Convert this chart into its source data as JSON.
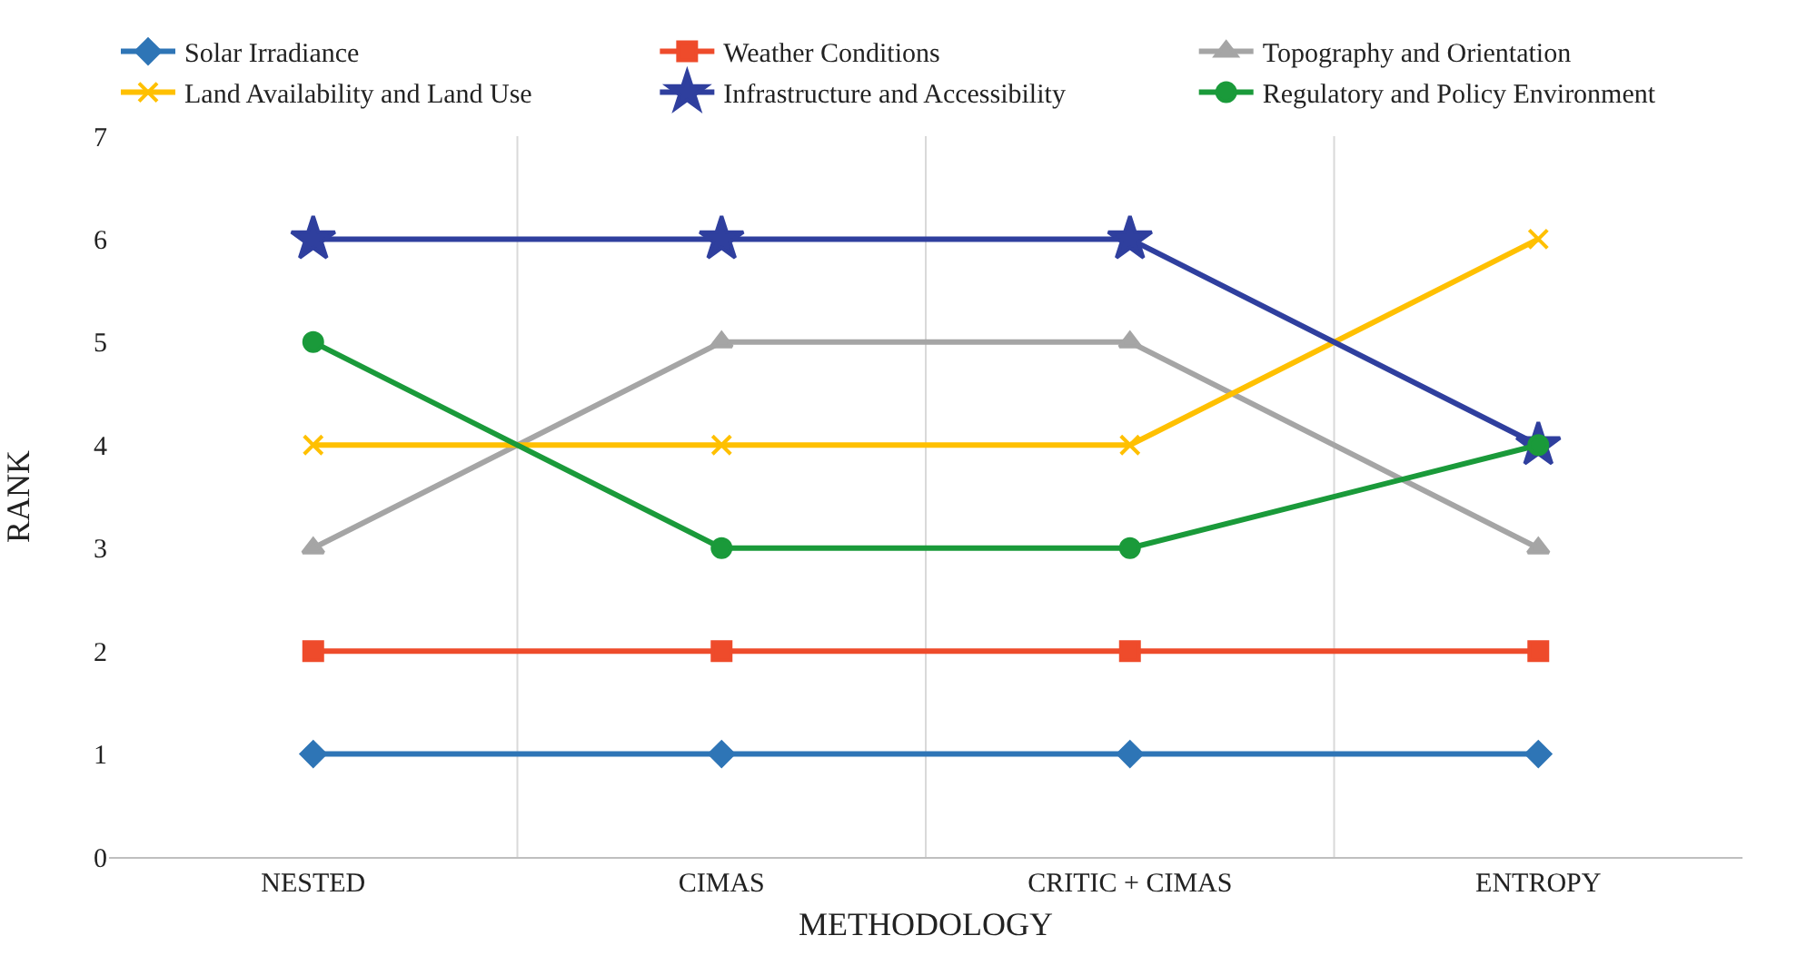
{
  "chart_data": {
    "type": "line",
    "xlabel": "METHODOLOGY",
    "ylabel": "RANK",
    "categories": [
      "NESTED",
      "CIMAS",
      "CRITIC + CIMAS",
      "ENTROPY"
    ],
    "series": [
      {
        "name": "Solar Irradiance",
        "color": "#2e75b6",
        "marker": "diamond",
        "values": [
          1,
          1,
          1,
          1
        ]
      },
      {
        "name": "Weather Conditions",
        "color": "#ee4b2b",
        "marker": "square",
        "values": [
          2,
          2,
          2,
          2
        ]
      },
      {
        "name": "Topography and Orientation",
        "color": "#a5a5a5",
        "marker": "triangle",
        "values": [
          3,
          5,
          5,
          3
        ]
      },
      {
        "name": "Land Availability and Land Use",
        "color": "#ffc000",
        "marker": "cross",
        "values": [
          4,
          4,
          4,
          6
        ]
      },
      {
        "name": "Infrastructure and Accessibility",
        "color": "#2f3f9e",
        "marker": "star",
        "values": [
          6,
          6,
          6,
          4
        ]
      },
      {
        "name": "Regulatory and Policy Environment",
        "color": "#1a9a3a",
        "marker": "circle",
        "values": [
          5,
          3,
          3,
          4
        ]
      }
    ],
    "ylim": [
      0,
      7
    ],
    "yticks": [
      0,
      1,
      2,
      3,
      4,
      5,
      6,
      7
    ],
    "grid": "x",
    "legend": "top",
    "line_style": "solid"
  }
}
